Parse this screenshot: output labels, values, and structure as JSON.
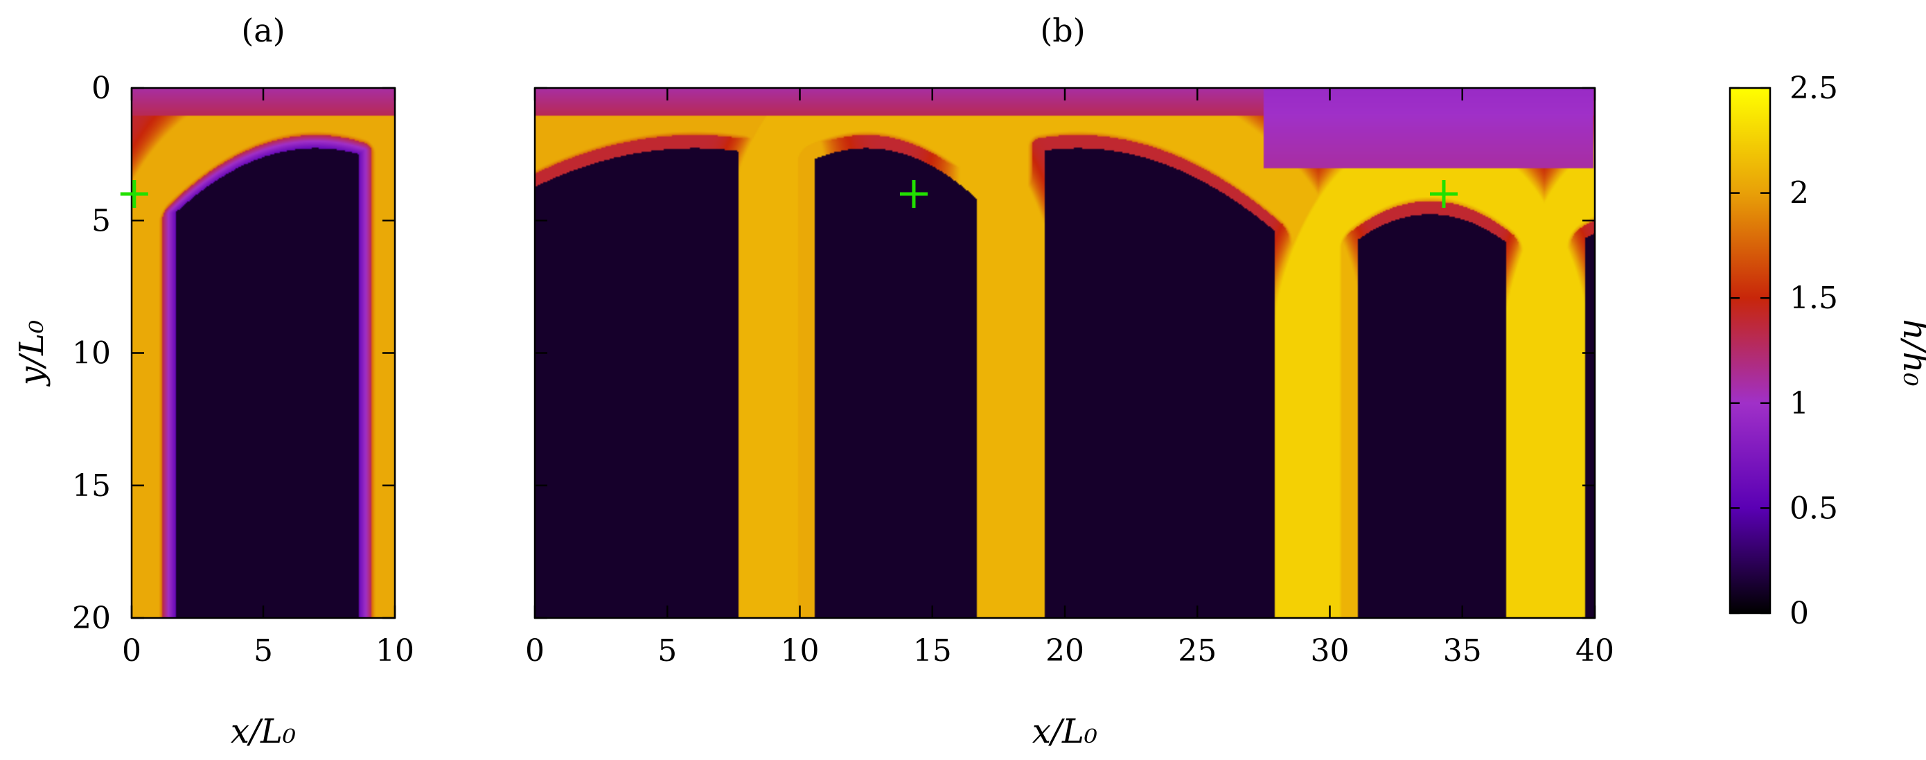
{
  "chart_data": [
    {
      "type": "heatmap",
      "panel_label": "(a)",
      "xlabel": "x/L₀",
      "ylabel": "y/L₀",
      "xlim": [
        0,
        10
      ],
      "ylim": [
        20,
        0
      ],
      "xticks": [
        "0",
        "5",
        "10"
      ],
      "yticks": [
        "0",
        "5",
        "10",
        "15",
        "20"
      ],
      "markers": [
        {
          "x": 0.1,
          "y": 4
        }
      ],
      "field": {
        "background": 0.12,
        "top_band": {
          "from_y": 0,
          "to_y": 1.0,
          "value": 1.1
        },
        "rims": [
          {
            "x_left": 1.4,
            "x_right": 8.9,
            "top_y": 2.0,
            "peak_x": 7.0,
            "rim_height": 1.95
          }
        ]
      }
    },
    {
      "type": "heatmap",
      "panel_label": "(b)",
      "xlabel": "x/L₀",
      "xlim": [
        0,
        40
      ],
      "ylim": [
        20,
        0
      ],
      "xticks": [
        "0",
        "5",
        "10",
        "15",
        "20",
        "25",
        "30",
        "35",
        "40"
      ],
      "markers": [
        {
          "x": 14.3,
          "y": 4
        },
        {
          "x": 34.3,
          "y": 4
        }
      ],
      "field": {
        "background": 0.12,
        "top_band": {
          "from_y": 0,
          "to_y": 1.0,
          "value": 1.1
        },
        "rims": [
          {
            "x_left": -3.0,
            "x_right": 7.9,
            "top_y": 2.0,
            "peak_x": 6.0,
            "rim_height": 1.95
          },
          {
            "x_left": 10.3,
            "x_right": 16.9,
            "top_y": 2.0,
            "peak_x": 12.5,
            "rim_height": 2.0
          },
          {
            "x_left": 19.0,
            "x_right": 28.2,
            "top_y": 2.0,
            "peak_x": 20.5,
            "rim_height": 2.0
          },
          {
            "x_left": 30.8,
            "x_right": 36.9,
            "top_y": 4.5,
            "peak_x": 33.8,
            "rim_height": 2.15
          },
          {
            "x_left": 39.4,
            "x_right": 44.0,
            "top_y": 5.0,
            "peak_x": 41.0,
            "rim_height": 2.15
          }
        ],
        "purple_patch": {
          "x_from": 27.5,
          "x_to": 40,
          "y_to": 3.0,
          "value": 0.95
        }
      }
    },
    {
      "type": "colorbar",
      "label": "h/h₀",
      "range": [
        0,
        2.5
      ],
      "ticks": [
        "0",
        "0.5",
        "1",
        "1.5",
        "2",
        "2.5"
      ],
      "colormap": [
        "#000000",
        "#5a00b4",
        "#a030c8",
        "#c8260a",
        "#e8a008",
        "#ffff00"
      ]
    }
  ]
}
